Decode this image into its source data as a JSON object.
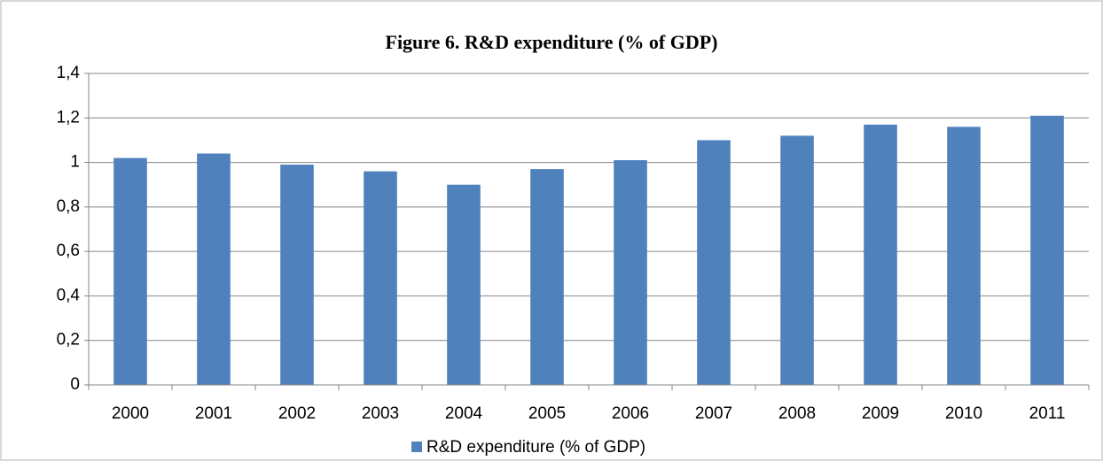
{
  "chart_data": {
    "type": "bar",
    "title": "Figure 6. R&D expenditure (% of GDP)",
    "categories": [
      "2000",
      "2001",
      "2002",
      "2003",
      "2004",
      "2005",
      "2006",
      "2007",
      "2008",
      "2009",
      "2010",
      "2011"
    ],
    "series": [
      {
        "name": "R&D expenditure (% of GDP)",
        "color": "#4f81bd",
        "values": [
          1.02,
          1.04,
          0.99,
          0.96,
          0.9,
          0.97,
          1.01,
          1.1,
          1.12,
          1.17,
          1.16,
          1.21
        ]
      }
    ],
    "ylim": [
      0,
      1.4
    ],
    "yticks": [
      0,
      {
        "value": 0.2,
        "label": "0,2"
      },
      {
        "value": 0.4,
        "label": "0,4"
      },
      {
        "value": 0.6,
        "label": "0,6"
      },
      {
        "value": 0.8,
        "label": "0,8"
      },
      1,
      {
        "value": 1.2,
        "label": "1,2"
      },
      {
        "value": 1.4,
        "label": "1,4"
      }
    ],
    "grid": true,
    "legend": "bottom"
  }
}
